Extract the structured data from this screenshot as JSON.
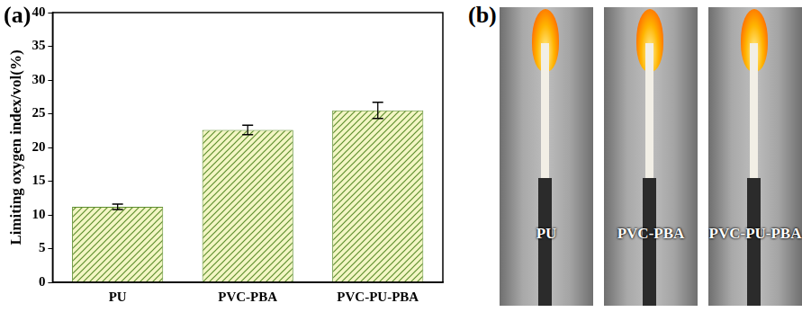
{
  "chart_data": {
    "type": "bar",
    "panel": "(a)",
    "y_label": "Limiting oxygen index/vol(%)",
    "categories": [
      "PU",
      "PVC-PBA",
      "PVC-PU-PBA"
    ],
    "values": [
      11.2,
      22.6,
      25.5
    ],
    "errors": [
      0.4,
      0.7,
      1.2
    ],
    "color": "#5f8f2f",
    "ylim": [
      0,
      40
    ],
    "yticks": [
      0,
      5,
      10,
      15,
      20,
      25,
      30,
      35,
      40
    ],
    "grid": false
  },
  "photos": {
    "panel": "(b)",
    "labels": [
      "PU",
      "PVC-PBA",
      "PVC-PU-PBA"
    ]
  }
}
